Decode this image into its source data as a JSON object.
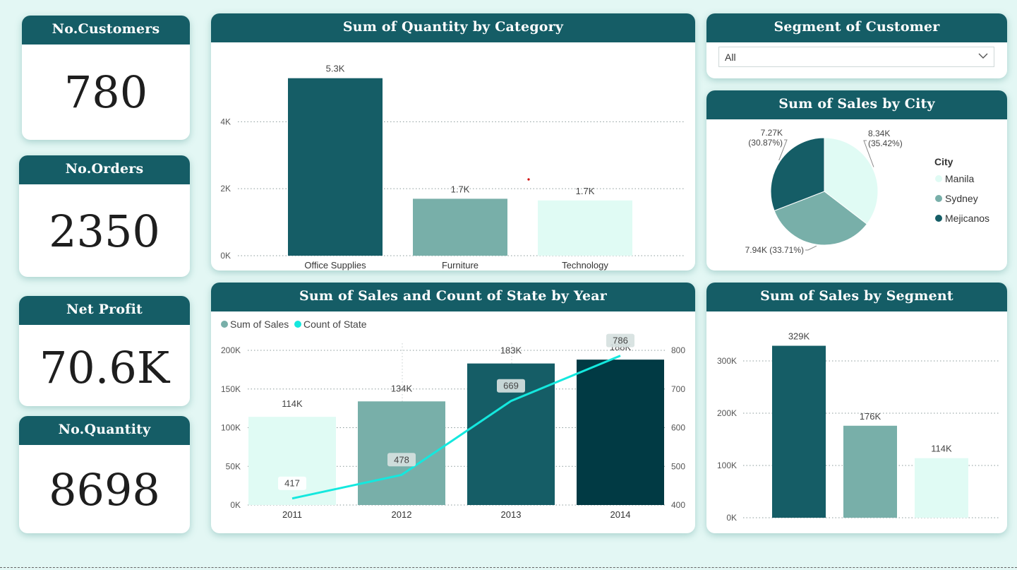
{
  "kpis": [
    {
      "label": "No.Customers",
      "value": "780"
    },
    {
      "label": "No.Orders",
      "value": "2350"
    },
    {
      "label": "Net Profit",
      "value": "70.6K"
    },
    {
      "label": "No.Quantity",
      "value": "8698"
    }
  ],
  "segment_filter": {
    "title": "Segment of Customer",
    "selected": "All"
  },
  "colors": {
    "header": "#155d66",
    "dark_teal": "#155d66",
    "mid_teal": "#78afa9",
    "light_teal": "#e0fbf4",
    "darkest_teal": "#013a44",
    "cyan_line": "#14e8de"
  },
  "chart_data": [
    {
      "id": "quantity_by_category",
      "type": "bar",
      "title": "Sum of Quantity by Category",
      "categories": [
        "Office Supplies",
        "Furniture",
        "Technology"
      ],
      "values": [
        5300,
        1700,
        1650
      ],
      "data_labels": [
        "5.3K",
        "1.7K",
        "1.7K"
      ],
      "y_ticks": [
        "0K",
        "2K",
        "4K"
      ],
      "ylim": [
        0,
        5800
      ],
      "grid": true
    },
    {
      "id": "sales_by_city",
      "type": "pie",
      "title": "Sum of Sales by City",
      "legend_title": "City",
      "legend_position": "right",
      "labels": [
        "Manila",
        "Sydney",
        "Mejicanos"
      ],
      "values": [
        8340,
        7940,
        7270
      ],
      "data_labels": [
        "8.34K (35.42%)",
        "7.94K (33.71%)",
        "7.27K (30.87%)"
      ],
      "percentages": [
        35.42,
        33.71,
        30.87
      ]
    },
    {
      "id": "sales_and_state_by_year",
      "type": "bar",
      "title": "Sum of Sales and Count of State by Year",
      "categories": [
        "2011",
        "2012",
        "2013",
        "2014"
      ],
      "series": [
        {
          "name": "Sum of Sales",
          "type": "bar",
          "values": [
            114000,
            134000,
            183000,
            188000
          ],
          "data_labels": [
            "114K",
            "134K",
            "183K",
            "188K"
          ]
        },
        {
          "name": "Count of State",
          "type": "line",
          "values": [
            417,
            478,
            669,
            786
          ],
          "data_labels": [
            "417",
            "478",
            "669",
            "786"
          ]
        }
      ],
      "y_ticks": [
        "0K",
        "50K",
        "100K",
        "150K",
        "200K"
      ],
      "ylim": [
        0,
        200000
      ],
      "y2_ticks": [
        "400",
        "500",
        "600",
        "700",
        "800"
      ],
      "y2lim": [
        400,
        800
      ],
      "legend_position": "top-left",
      "grid": true
    },
    {
      "id": "sales_by_segment",
      "type": "bar",
      "title": "Sum of Sales by Segment",
      "values": [
        329000,
        176000,
        114000
      ],
      "data_labels": [
        "329K",
        "176K",
        "114K"
      ],
      "y_ticks": [
        "0K",
        "100K",
        "200K",
        "300K"
      ],
      "ylim": [
        0,
        350000
      ],
      "grid": true
    }
  ]
}
